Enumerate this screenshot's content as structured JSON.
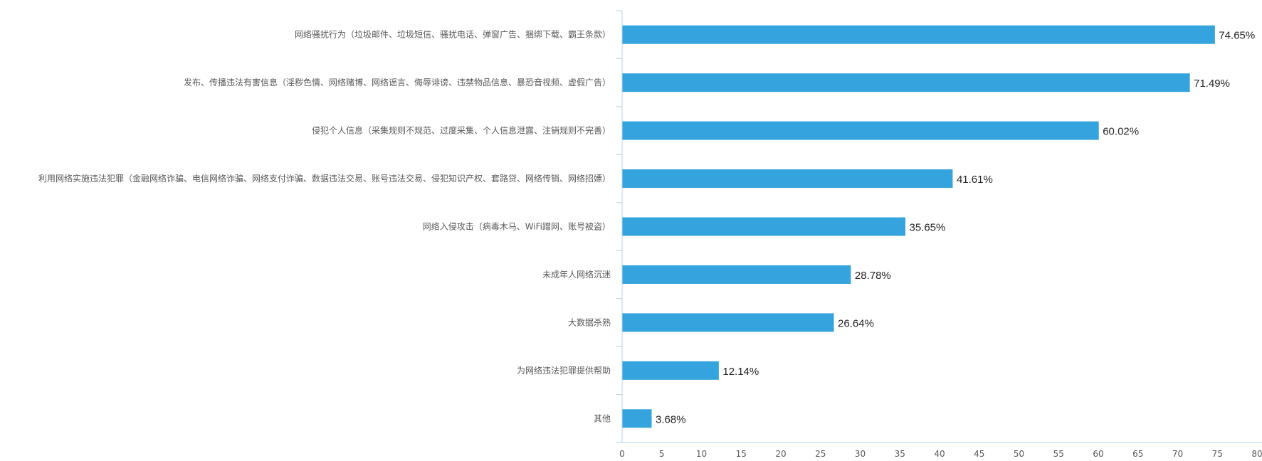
{
  "chart_data": {
    "type": "bar",
    "orientation": "horizontal",
    "categories": [
      "网络骚扰行为（垃圾邮件、垃圾短信、骚扰电话、弹窗广告、捆绑下载、霸王条款）",
      "发布、传播违法有害信息（淫秽色情、网络赌博、网络谣言、侮辱诽谤、违禁物品信息、暴恐音视频、虚假广告）",
      "侵犯个人信息（采集规则不规范、过度采集、个人信息泄露、注销规则不完善）",
      "利用网络实施违法犯罪（金融网络诈骗、电信网络诈骗、网络支付诈骗、数据违法交易、账号违法交易、侵犯知识产权、套路贷、网络传销、网络招嫖）",
      "网络入侵攻击（病毒木马、WiFi蹭网、账号被盗）",
      "未成年人网络沉迷",
      "大数据杀熟",
      "为网络违法犯罪提供帮助",
      "其他"
    ],
    "values": [
      74.65,
      71.49,
      60.02,
      41.61,
      35.65,
      28.78,
      26.64,
      12.14,
      3.68
    ],
    "data_labels": [
      "74.65%",
      "71.49%",
      "60.02%",
      "41.61%",
      "35.65%",
      "28.78%",
      "26.64%",
      "12.14%",
      "3.68%"
    ],
    "x_ticks": [
      "0",
      "5",
      "10",
      "15",
      "20",
      "25",
      "30",
      "35",
      "40",
      "45",
      "50",
      "55",
      "60",
      "65",
      "70",
      "75",
      "80"
    ],
    "xlim": [
      0,
      80
    ],
    "bar_color": "#35a3dd",
    "axis_color": "#b7d3ea",
    "grid": false,
    "legend": "none",
    "title": "",
    "xlabel": "",
    "ylabel": ""
  }
}
